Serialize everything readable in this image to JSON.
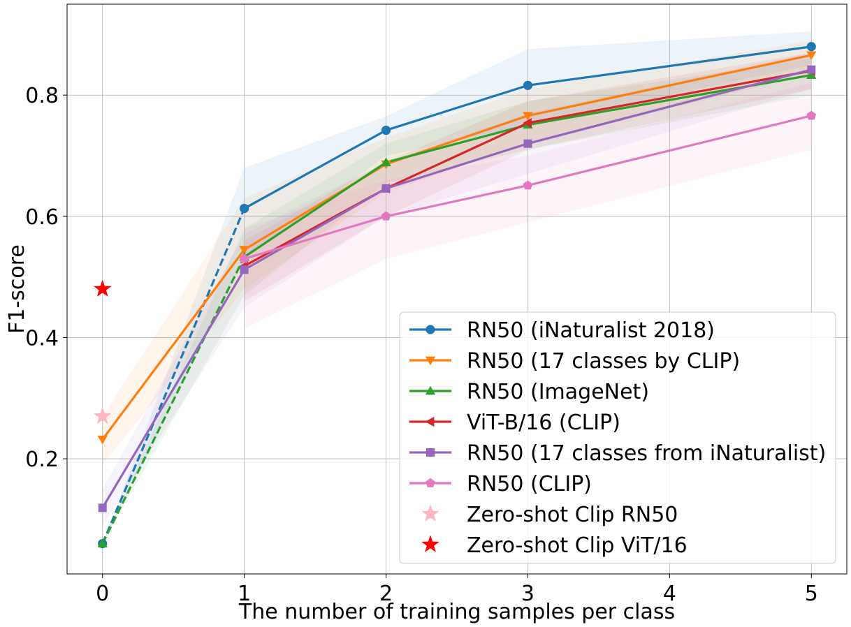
{
  "chart_data": {
    "type": "line",
    "xlabel": "The number of training samples per class",
    "ylabel": "F1-score",
    "xlim": [
      -0.25,
      5.25
    ],
    "ylim": [
      0.01,
      0.95
    ],
    "xticks": [
      "0",
      "1",
      "2",
      "3",
      "4",
      "5"
    ],
    "yticks": [
      "0.2",
      "0.4",
      "0.6",
      "0.8"
    ],
    "grid": true,
    "legend_position": "lower-right",
    "series": [
      {
        "name": "RN50 (iNaturalist 2018)",
        "color": "#1f77b4",
        "marker": "circle",
        "x": [
          0,
          1,
          2,
          3,
          5
        ],
        "values": [
          0.06,
          0.613,
          0.742,
          0.816,
          0.88
        ],
        "band_low": [
          0.06,
          0.53,
          0.7,
          0.75,
          0.85
        ],
        "band_high": [
          0.06,
          0.68,
          0.765,
          0.876,
          0.905
        ],
        "dashed_first_segment": true
      },
      {
        "name": "RN50 (17 classes by CLIP)",
        "color": "#ff7f0e",
        "marker": "triangle-down",
        "x": [
          0,
          1,
          2,
          3,
          5
        ],
        "values": [
          0.232,
          0.545,
          0.686,
          0.766,
          0.866
        ],
        "band_low": [
          0.19,
          0.48,
          0.64,
          0.72,
          0.835
        ],
        "band_high": [
          0.27,
          0.63,
          0.73,
          0.81,
          0.89
        ],
        "dashed_first_segment": false
      },
      {
        "name": "RN50 (ImageNet)",
        "color": "#2ca02c",
        "marker": "triangle-up",
        "x": [
          0,
          1,
          2,
          3,
          5
        ],
        "values": [
          0.06,
          0.533,
          0.689,
          0.751,
          0.833
        ],
        "band_low": [
          0.06,
          0.47,
          0.655,
          0.71,
          0.8
        ],
        "band_high": [
          0.06,
          0.58,
          0.72,
          0.79,
          0.86
        ],
        "dashed_first_segment": true
      },
      {
        "name": "ViT-B/16 (CLIP)",
        "color": "#d62728",
        "marker": "triangle-left",
        "x": [
          1,
          2,
          3,
          5
        ],
        "values": [
          0.518,
          0.646,
          0.754,
          0.84
        ],
        "band_low": [
          0.46,
          0.6,
          0.71,
          0.81
        ],
        "band_high": [
          0.56,
          0.69,
          0.79,
          0.87
        ],
        "dashed_first_segment": false
      },
      {
        "name": "RN50 (17 classes from iNaturalist)",
        "color": "#9467bd",
        "marker": "square",
        "x": [
          0,
          1,
          2,
          3,
          5
        ],
        "values": [
          0.119,
          0.512,
          0.646,
          0.72,
          0.842
        ],
        "band_low": [
          0.09,
          0.45,
          0.6,
          0.67,
          0.81
        ],
        "band_high": [
          0.15,
          0.57,
          0.69,
          0.77,
          0.87
        ],
        "dashed_first_segment": false
      },
      {
        "name": "RN50 (CLIP)",
        "color": "#e377c2",
        "marker": "pentagon",
        "x": [
          1,
          2,
          3,
          5
        ],
        "values": [
          0.53,
          0.6,
          0.651,
          0.766
        ],
        "band_low": [
          0.415,
          0.53,
          0.59,
          0.71
        ],
        "band_high": [
          0.58,
          0.66,
          0.7,
          0.82
        ],
        "dashed_first_segment": false
      }
    ],
    "points": [
      {
        "name": "Zero-shot Clip RN50",
        "color": "#ffb6c1",
        "marker": "star",
        "x": 0,
        "y": 0.27
      },
      {
        "name": "Zero-shot Clip ViT/16",
        "color": "#ff0000",
        "marker": "star",
        "x": 0,
        "y": 0.48
      }
    ]
  }
}
